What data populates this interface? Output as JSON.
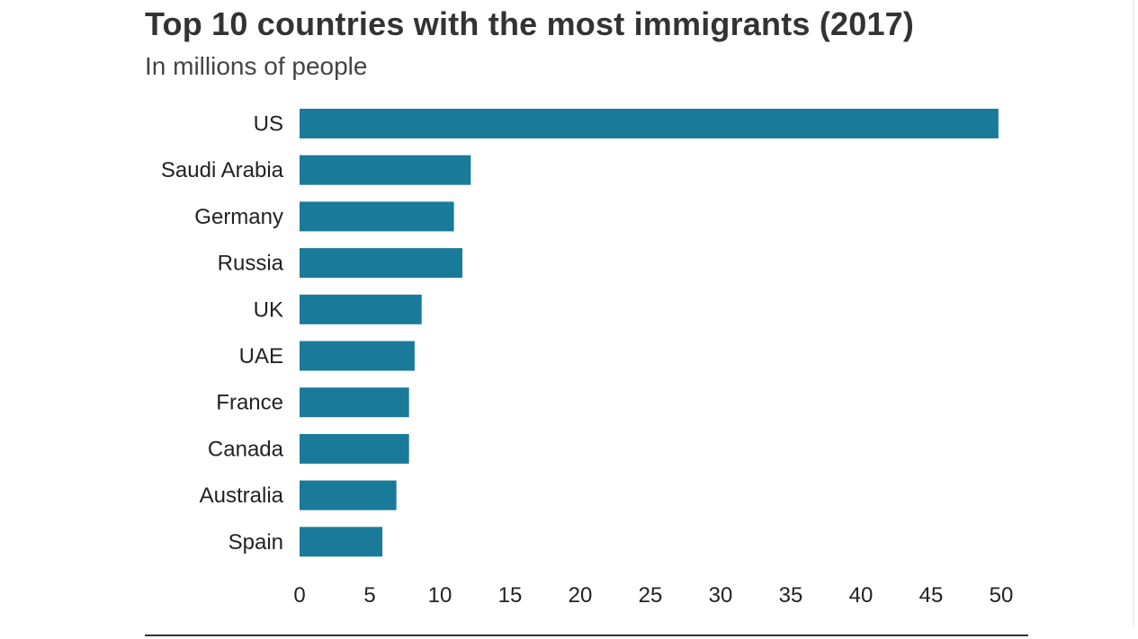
{
  "chart_data": {
    "type": "bar",
    "orientation": "horizontal",
    "title": "Top 10 countries with the most immigrants (2017)",
    "subtitle": "In millions of people",
    "xlabel": "",
    "ylabel": "",
    "categories": [
      "US",
      "Saudi Arabia",
      "Germany",
      "Russia",
      "UK",
      "UAE",
      "France",
      "Canada",
      "Australia",
      "Spain"
    ],
    "values": [
      49.8,
      12.2,
      11.0,
      11.6,
      8.7,
      8.2,
      7.8,
      7.8,
      6.9,
      5.9
    ],
    "xlim": [
      0,
      50
    ],
    "xticks": [
      "0",
      "5",
      "10",
      "15",
      "20",
      "25",
      "30",
      "35",
      "40",
      "45",
      "50"
    ],
    "grid": false,
    "legend": "none",
    "bar_color": "#1a7a9a"
  }
}
